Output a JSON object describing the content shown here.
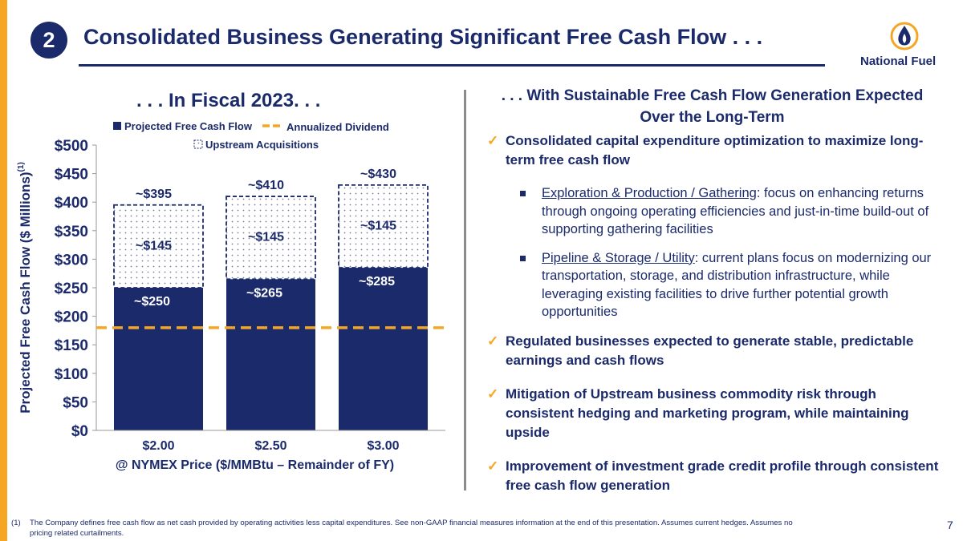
{
  "header": {
    "badge": "2",
    "title": "Consolidated Business Generating Significant Free Cash Flow . . .",
    "logo_text": "National Fuel"
  },
  "colors": {
    "navy": "#1b2a6b",
    "orange": "#f5a623",
    "divider": "#8c8c8c"
  },
  "chart_subtitle": ". . . In Fiscal 2023. . .",
  "chart_data": {
    "type": "bar",
    "stacked": true,
    "categories": [
      "$2.00",
      "$2.50",
      "$3.00"
    ],
    "series": [
      {
        "name": "Projected Free Cash Flow",
        "values": [
          250,
          265,
          285
        ],
        "labels": [
          "~$250",
          "~$265",
          "~$285"
        ],
        "fill": "solid-navy"
      },
      {
        "name": "Upstream Acquisitions",
        "values": [
          145,
          145,
          145
        ],
        "labels": [
          "~$145",
          "~$145",
          "~$145"
        ],
        "fill": "dotted-dashed-outline"
      }
    ],
    "totals": [
      395,
      410,
      430
    ],
    "total_labels": [
      "~$395",
      "~$410",
      "~$430"
    ],
    "reference_line": {
      "name": "Annualized Dividend",
      "value": 180,
      "style": "dashed-orange"
    },
    "ylim": [
      0,
      500
    ],
    "yticks": [
      0,
      50,
      100,
      150,
      200,
      250,
      300,
      350,
      400,
      450,
      500
    ],
    "ytick_labels": [
      "$0",
      "$50",
      "$100",
      "$150",
      "$200",
      "$250",
      "$300",
      "$350",
      "$400",
      "$450",
      "$500"
    ],
    "ylabel": "Projected Free Cash Flow ($ Millions)",
    "ylabel_sup": "(1)",
    "xlabel": "@ NYMEX Price ($/MMBtu – Remainder of FY)",
    "legend": [
      "Projected Free Cash Flow",
      "Annualized Dividend",
      "Upstream Acquisitions"
    ],
    "legend_position": "top"
  },
  "right": {
    "heading_line1": ". . . With Sustainable Free Cash Flow Generation Expected",
    "heading_line2": "Over the Long-Term",
    "check_glyph": "✓",
    "sub_glyph": "▪",
    "b1": "Consolidated capital expenditure optimization to maximize long-term free cash flow",
    "s1_lead": "Exploration & Production / Gathering",
    "s1_rest": ": focus on enhancing returns through ongoing operating efficiencies and just-in-time build-out of supporting gathering facilities",
    "s2_lead": "Pipeline & Storage / Utility",
    "s2_rest": ": current plans focus on modernizing our transportation, storage, and distribution infrastructure, while leveraging existing facilities to drive further potential growth opportunities",
    "b2": "Regulated businesses expected to generate stable, predictable earnings and cash flows",
    "b3": "Mitigation of Upstream business commodity risk through consistent hedging and marketing program, while maintaining upside",
    "b4": "Improvement of investment grade credit profile through consistent free cash flow generation"
  },
  "footnote": {
    "num": "(1)",
    "text": "The Company defines free cash flow as net cash provided by operating activities less capital expenditures. See non-GAAP financial measures information at the end of this presentation. Assumes current hedges. Assumes no pricing related curtailments."
  },
  "page_number": "7"
}
